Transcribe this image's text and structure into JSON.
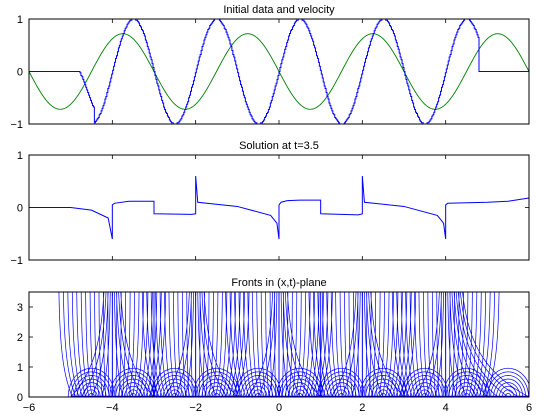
{
  "chart_data": [
    {
      "type": "line",
      "title": "Initial data and velocity",
      "xlim": [
        -6,
        6
      ],
      "ylim": [
        -1,
        1
      ],
      "xticks": [
        -6,
        -4,
        -2,
        0,
        2,
        4,
        6
      ],
      "yticks": [
        -1,
        0,
        1
      ],
      "grid": false,
      "series": [
        {
          "color": "#0000ff",
          "style": "stepped",
          "description_points": {
            "x": [
              -6,
              -4.8,
              -4.45,
              -4.0,
              -3.5,
              -3.0,
              -2.5,
              -2.0,
              -1.5,
              -1.0,
              -0.5,
              0.0,
              0.5,
              1.0,
              1.5,
              2.0,
              2.5,
              3.0,
              3.5,
              4.0,
              4.45,
              4.8,
              6
            ],
            "y": [
              0,
              0,
              -0.7,
              -1,
              1,
              -1,
              1,
              -1,
              1,
              -1,
              1,
              -1,
              1,
              -1,
              1,
              -1,
              1,
              -1,
              1,
              -1,
              1,
              0,
              0
            ]
          }
        },
        {
          "color": "#008000",
          "style": "smooth",
          "x_range": [
            -6,
            6
          ],
          "amplitude": 0.72,
          "period": 3.0,
          "phase_zero_at": -6
        }
      ]
    },
    {
      "type": "line",
      "title": "Solution at t=3.5",
      "xlim": [
        -6,
        6
      ],
      "ylim": [
        -1,
        1
      ],
      "xticks": [
        -6,
        -4,
        -2,
        0,
        2,
        4,
        6
      ],
      "yticks": [
        -1,
        0,
        1
      ],
      "grid": false,
      "series": [
        {
          "color": "#0000ff",
          "points": {
            "x": [
              -6,
              -5.0,
              -4.5,
              -4.1,
              -4.0,
              -4.0,
              -3.95,
              -3.6,
              -3.0,
              -3.0,
              -2.1,
              -2.0,
              -2.0,
              -1.95,
              -1.0,
              -0.2,
              -0.05,
              0.0,
              0.0,
              0.05,
              0.2,
              0.5,
              1.0,
              1.0,
              1.9,
              2.0,
              2.0,
              2.05,
              3.0,
              3.8,
              3.95,
              4.0,
              4.0,
              4.05,
              5.0,
              5.5,
              6.0
            ],
            "y": [
              0,
              0,
              -0.05,
              -0.2,
              -0.6,
              0.05,
              0.08,
              0.12,
              0.12,
              -0.12,
              -0.13,
              -0.12,
              0.6,
              0.1,
              0.02,
              -0.15,
              -0.3,
              -0.6,
              0.05,
              0.1,
              0.13,
              0.14,
              0.14,
              -0.12,
              -0.14,
              -0.12,
              0.6,
              0.1,
              0.02,
              -0.15,
              -0.3,
              -0.6,
              0.05,
              0.08,
              0.1,
              0.12,
              0.18
            ]
          }
        }
      ]
    },
    {
      "type": "line",
      "title": "Fronts in (x,t)-plane",
      "xlim": [
        -6,
        6
      ],
      "ylim": [
        0,
        3.5
      ],
      "xticks": [
        -6,
        -4,
        -2,
        0,
        2,
        4,
        6
      ],
      "yticks": [
        0,
        1,
        2,
        3
      ],
      "grid": false,
      "series": [
        {
          "color": "#0000ff",
          "style": "characteristic-fronts",
          "focus_x": [
            -4,
            -2,
            0,
            2,
            4
          ],
          "shock_x": [
            -4,
            -3,
            -2,
            0,
            1,
            2,
            4
          ],
          "x_range": [
            -5,
            6
          ]
        }
      ]
    }
  ]
}
